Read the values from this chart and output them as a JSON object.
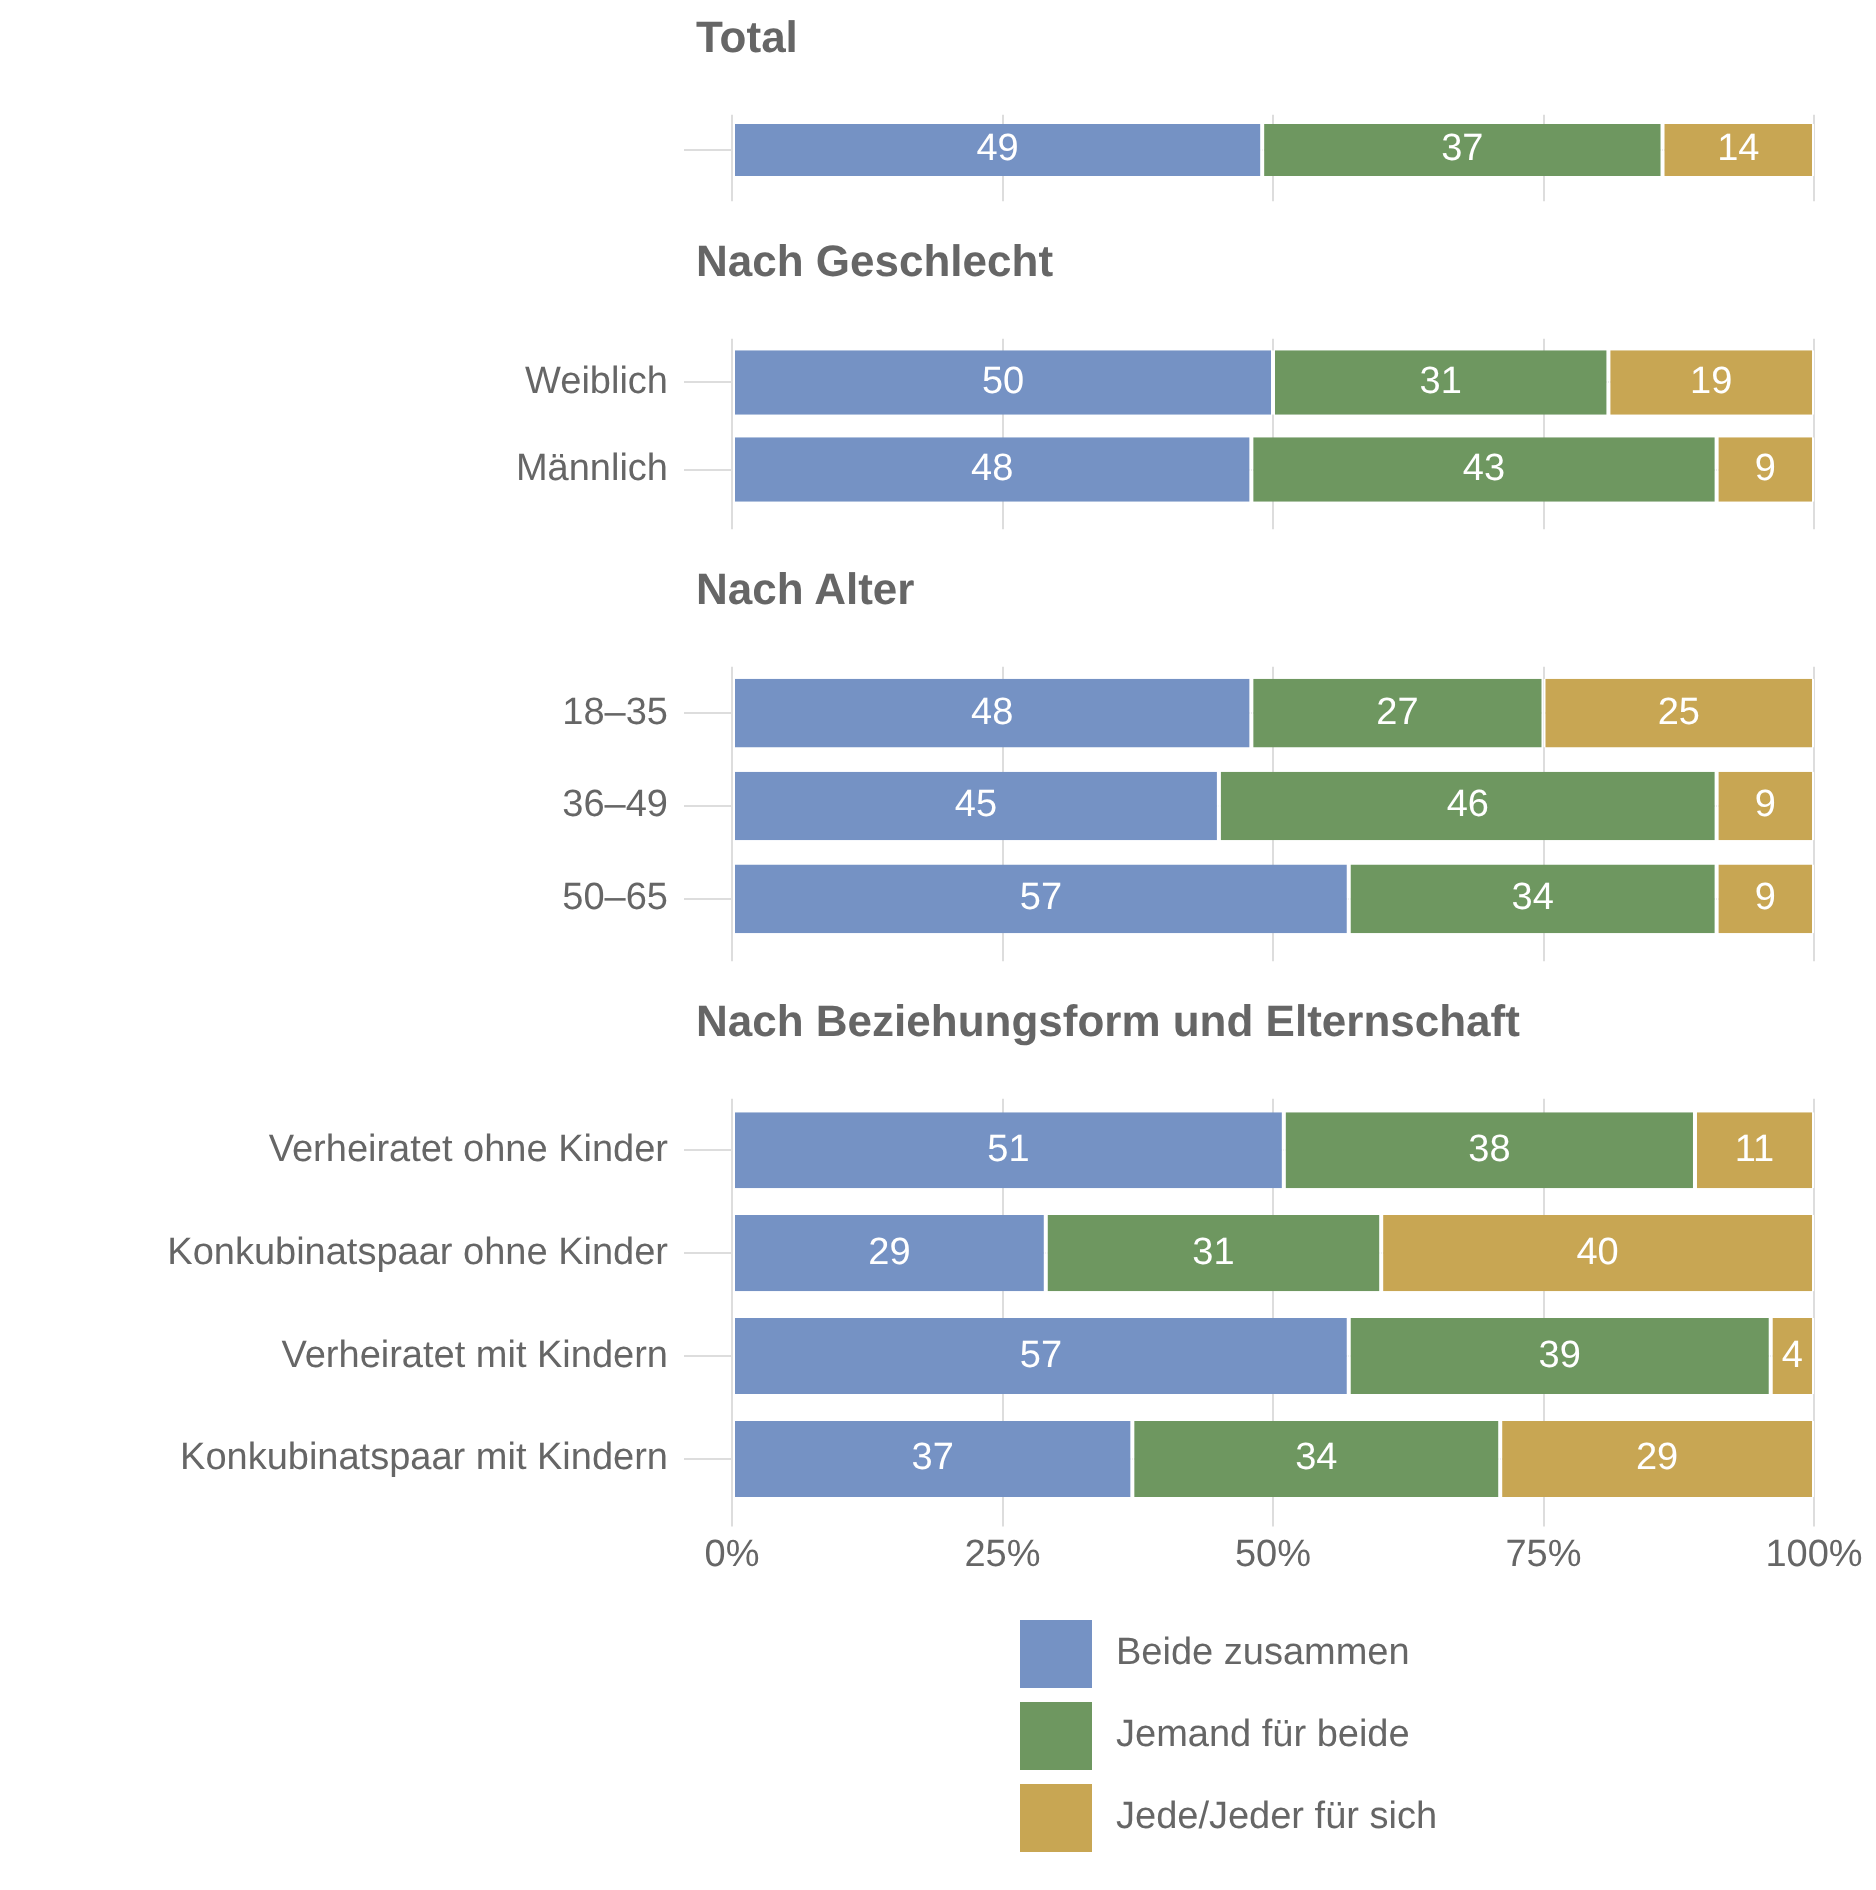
{
  "chart_data": [
    {
      "type": "bar",
      "title": "Total",
      "orientation": "horizontal",
      "stacked": true,
      "data_labels": true,
      "grid": true,
      "tick_labels": "y",
      "categories": [
        null
      ],
      "xlim": [
        0,
        100
      ],
      "xticks": [
        {
          "value": 0,
          "label": null
        },
        {
          "value": 25,
          "label": null
        },
        {
          "value": 50,
          "label": null
        },
        {
          "value": 75,
          "label": null
        },
        {
          "value": 100,
          "label": null
        }
      ],
      "series": [
        {
          "color": "#7592c4",
          "values": [
            49
          ]
        },
        {
          "color": "#6e9760",
          "values": [
            37
          ]
        },
        {
          "color": "#c8a653",
          "values": [
            14
          ]
        }
      ]
    },
    {
      "type": "bar",
      "title": "Nach Geschlecht",
      "orientation": "horizontal",
      "stacked": true,
      "data_labels": true,
      "grid": true,
      "tick_labels": "y",
      "categories": [
        "Weiblich",
        "Männlich"
      ],
      "xlim": [
        0,
        100
      ],
      "xticks": [
        {
          "value": 0,
          "label": null
        },
        {
          "value": 25,
          "label": null
        },
        {
          "value": 50,
          "label": null
        },
        {
          "value": 75,
          "label": null
        },
        {
          "value": 100,
          "label": null
        }
      ],
      "series": [
        {
          "color": "#7592c4",
          "values": [
            50,
            48
          ]
        },
        {
          "color": "#6e9760",
          "values": [
            31,
            43
          ]
        },
        {
          "color": "#c8a653",
          "values": [
            19,
            9
          ]
        }
      ]
    },
    {
      "type": "bar",
      "title": "Nach Alter",
      "orientation": "horizontal",
      "stacked": true,
      "data_labels": true,
      "grid": true,
      "tick_labels": "y",
      "categories": [
        "18–35",
        "36–49",
        "50–65"
      ],
      "xlim": [
        0,
        100
      ],
      "xticks": [
        {
          "value": 0,
          "label": null
        },
        {
          "value": 25,
          "label": null
        },
        {
          "value": 50,
          "label": null
        },
        {
          "value": 75,
          "label": null
        },
        {
          "value": 100,
          "label": null
        }
      ],
      "series": [
        {
          "color": "#7592c4",
          "values": [
            48,
            45,
            57
          ]
        },
        {
          "color": "#6e9760",
          "values": [
            27,
            46,
            34
          ]
        },
        {
          "color": "#c8a653",
          "values": [
            25,
            9,
            9
          ]
        }
      ]
    },
    {
      "type": "bar",
      "title": "Nach Beziehungsform und Elternschaft",
      "orientation": "horizontal",
      "stacked": true,
      "data_labels": true,
      "grid": true,
      "legend": "bottom",
      "categories": [
        "Verheiratet ohne Kinder",
        "Konkubinatspaar ohne Kinder",
        "Verheiratet mit Kindern",
        "Konkubinatspaar mit Kindern"
      ],
      "xlim": [
        0,
        100
      ],
      "xticks": [
        {
          "value": 0,
          "label": "0%"
        },
        {
          "value": 25,
          "label": "25%"
        },
        {
          "value": 50,
          "label": "50%"
        },
        {
          "value": 75,
          "label": "75%"
        },
        {
          "value": 100,
          "label": "100%"
        }
      ],
      "series": [
        {
          "name": "Beide zusammen",
          "color": "#7592c4",
          "values": [
            51,
            29,
            57,
            37
          ]
        },
        {
          "name": "Jemand für beide",
          "color": "#6e9760",
          "values": [
            38,
            31,
            39,
            34
          ]
        },
        {
          "name": "Jede/Jeder für sich",
          "color": "#c8a653",
          "values": [
            11,
            40,
            4,
            29
          ]
        }
      ]
    }
  ]
}
